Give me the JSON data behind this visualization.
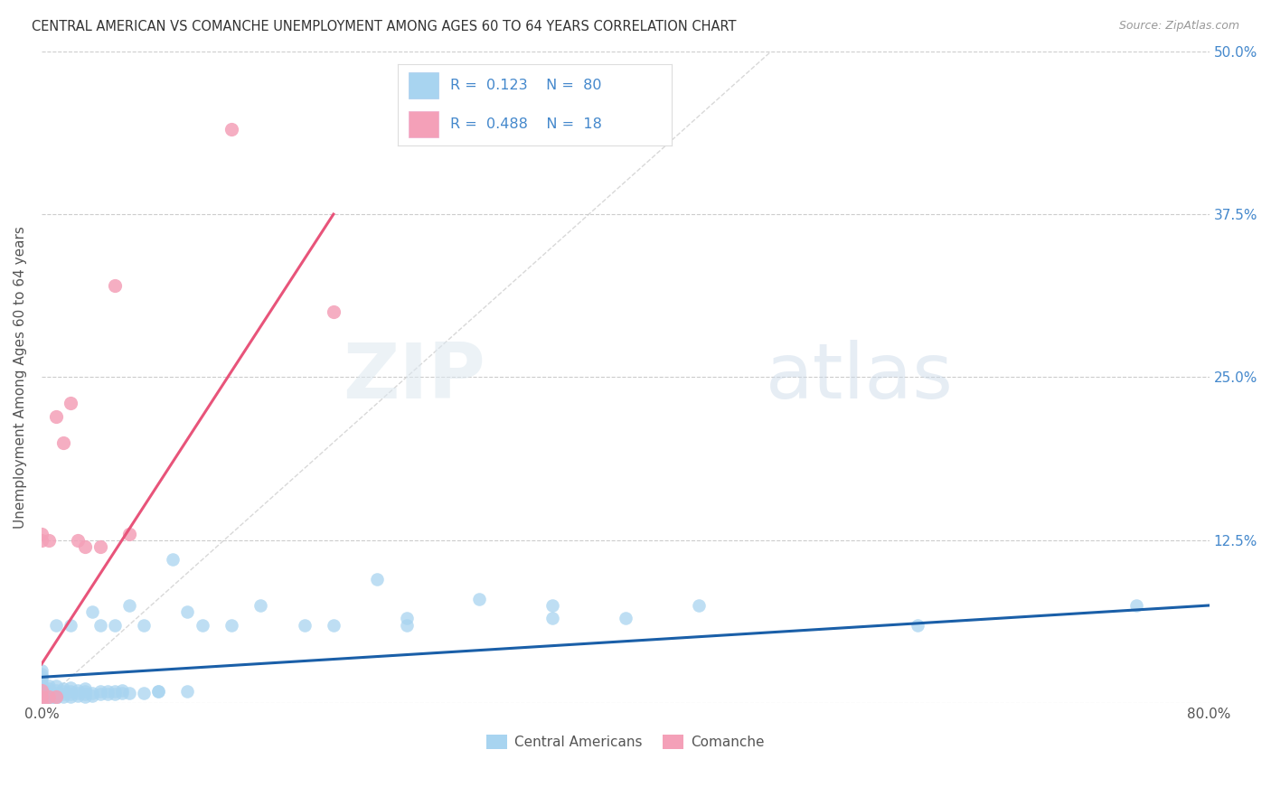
{
  "title": "CENTRAL AMERICAN VS COMANCHE UNEMPLOYMENT AMONG AGES 60 TO 64 YEARS CORRELATION CHART",
  "source": "Source: ZipAtlas.com",
  "ylabel": "Unemployment Among Ages 60 to 64 years",
  "xlim": [
    0.0,
    0.8
  ],
  "ylim": [
    0.0,
    0.5
  ],
  "grid_color": "#cccccc",
  "background_color": "#ffffff",
  "diagonal_line_color": "#c8c8c8",
  "blue_color": "#a8d4f0",
  "pink_color": "#f4a0b8",
  "blue_line_color": "#1a5fa8",
  "pink_line_color": "#e8547a",
  "blue_r": 0.123,
  "blue_n": 80,
  "pink_r": 0.488,
  "pink_n": 18,
  "blue_scatter_x": [
    0.0,
    0.0,
    0.0,
    0.0,
    0.0,
    0.0,
    0.0,
    0.0,
    0.0,
    0.0,
    0.0,
    0.0,
    0.0,
    0.0,
    0.0,
    0.005,
    0.005,
    0.005,
    0.005,
    0.005,
    0.005,
    0.01,
    0.01,
    0.01,
    0.01,
    0.01,
    0.01,
    0.015,
    0.015,
    0.015,
    0.015,
    0.02,
    0.02,
    0.02,
    0.02,
    0.02,
    0.025,
    0.025,
    0.025,
    0.03,
    0.03,
    0.03,
    0.03,
    0.035,
    0.035,
    0.035,
    0.04,
    0.04,
    0.04,
    0.045,
    0.045,
    0.05,
    0.05,
    0.05,
    0.055,
    0.055,
    0.06,
    0.06,
    0.07,
    0.07,
    0.08,
    0.08,
    0.09,
    0.1,
    0.1,
    0.11,
    0.13,
    0.15,
    0.18,
    0.2,
    0.23,
    0.25,
    0.25,
    0.3,
    0.35,
    0.35,
    0.4,
    0.45,
    0.6,
    0.75
  ],
  "blue_scatter_y": [
    0.0,
    0.002,
    0.003,
    0.005,
    0.006,
    0.007,
    0.008,
    0.009,
    0.01,
    0.012,
    0.015,
    0.018,
    0.02,
    0.022,
    0.025,
    0.003,
    0.005,
    0.007,
    0.009,
    0.011,
    0.013,
    0.004,
    0.006,
    0.008,
    0.01,
    0.013,
    0.06,
    0.005,
    0.007,
    0.009,
    0.011,
    0.005,
    0.007,
    0.009,
    0.012,
    0.06,
    0.006,
    0.008,
    0.01,
    0.005,
    0.007,
    0.009,
    0.011,
    0.006,
    0.008,
    0.07,
    0.007,
    0.009,
    0.06,
    0.007,
    0.009,
    0.007,
    0.009,
    0.06,
    0.008,
    0.01,
    0.008,
    0.075,
    0.008,
    0.06,
    0.009,
    0.009,
    0.11,
    0.009,
    0.07,
    0.06,
    0.06,
    0.075,
    0.06,
    0.06,
    0.095,
    0.065,
    0.06,
    0.08,
    0.065,
    0.075,
    0.065,
    0.075,
    0.06,
    0.075
  ],
  "pink_scatter_x": [
    0.0,
    0.0,
    0.0,
    0.0,
    0.0,
    0.005,
    0.005,
    0.01,
    0.01,
    0.015,
    0.02,
    0.025,
    0.03,
    0.04,
    0.05,
    0.06,
    0.13,
    0.2
  ],
  "pink_scatter_y": [
    0.0,
    0.005,
    0.01,
    0.125,
    0.13,
    0.005,
    0.125,
    0.005,
    0.22,
    0.2,
    0.23,
    0.125,
    0.12,
    0.12,
    0.32,
    0.13,
    0.44,
    0.3
  ],
  "blue_line_x": [
    0.0,
    0.8
  ],
  "blue_line_y": [
    0.02,
    0.075
  ],
  "pink_line_x": [
    0.0,
    0.2
  ],
  "pink_line_y": [
    0.03,
    0.375
  ]
}
